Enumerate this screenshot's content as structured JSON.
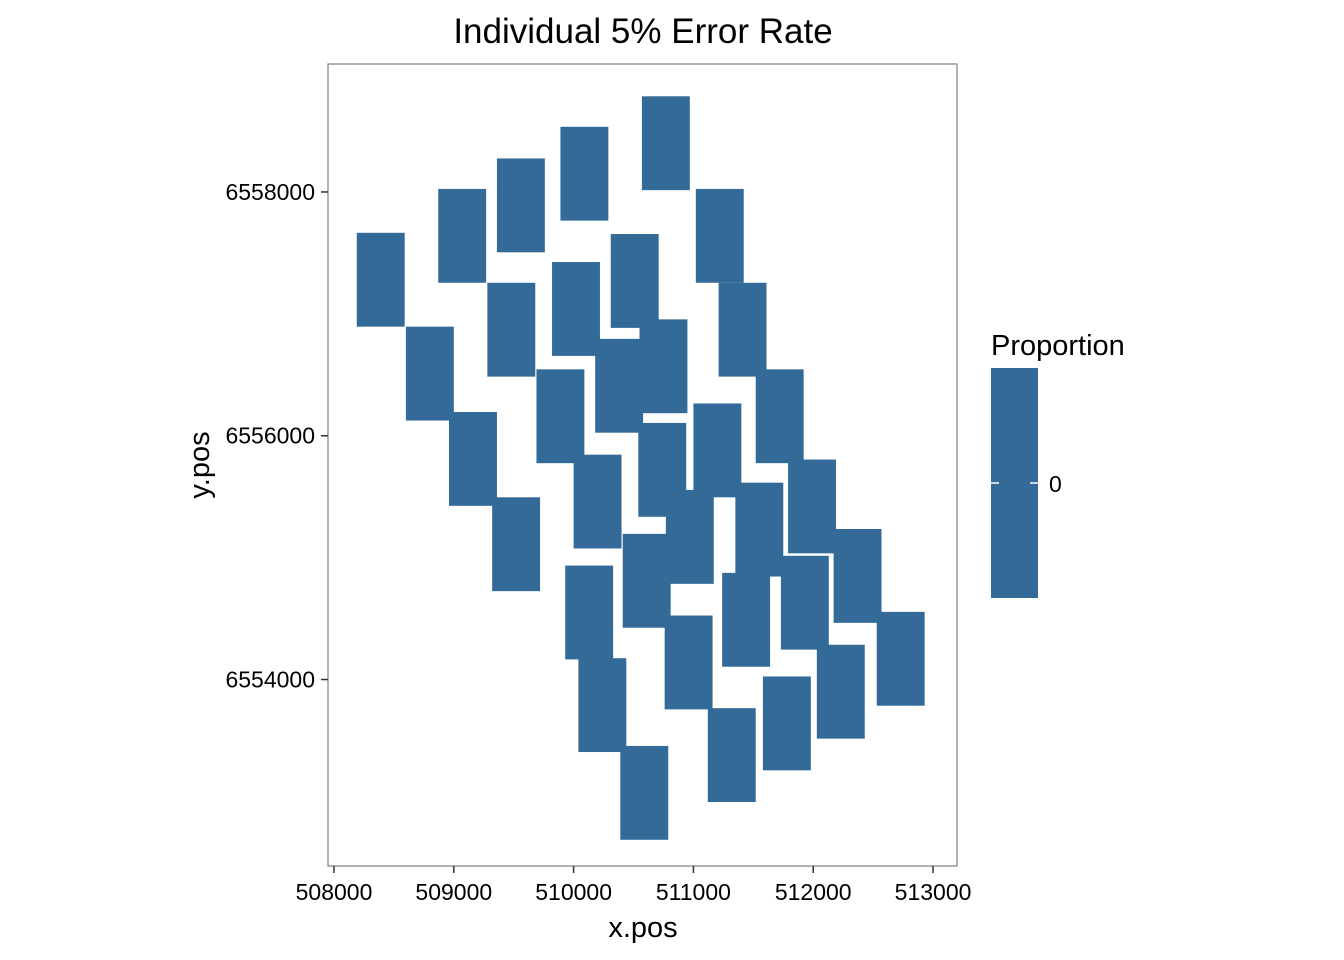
{
  "chart_data": {
    "type": "heatmap",
    "title": "Individual 5% Error Rate",
    "xlabel": "x.pos",
    "ylabel": "y.pos",
    "xlim": [
      507950,
      513200
    ],
    "ylim": [
      6552470,
      6559050
    ],
    "xticks": [
      {
        "value": 508000,
        "label": "508000"
      },
      {
        "value": 509000,
        "label": "509000"
      },
      {
        "value": 510000,
        "label": "510000"
      },
      {
        "value": 511000,
        "label": "511000"
      },
      {
        "value": 512000,
        "label": "512000"
      },
      {
        "value": 513000,
        "label": "513000"
      }
    ],
    "yticks": [
      {
        "value": 6554000,
        "label": "6554000"
      },
      {
        "value": 6556000,
        "label": "6556000"
      },
      {
        "value": 6558000,
        "label": "6558000"
      }
    ],
    "cell_width": 400,
    "cell_height": 770,
    "fill_color": "#336a98",
    "legend": {
      "title": "Proportion",
      "position": "right",
      "labels": [
        {
          "value": 0,
          "label": "0"
        }
      ]
    },
    "cells": [
      {
        "x": 508390,
        "y": 6557280,
        "value": 0
      },
      {
        "x": 508800,
        "y": 6556510,
        "value": 0
      },
      {
        "x": 509070,
        "y": 6557640,
        "value": 0
      },
      {
        "x": 509160,
        "y": 6555810,
        "value": 0
      },
      {
        "x": 509520,
        "y": 6555110,
        "value": 0
      },
      {
        "x": 509480,
        "y": 6556870,
        "value": 0
      },
      {
        "x": 509560,
        "y": 6557890,
        "value": 0
      },
      {
        "x": 509890,
        "y": 6556160,
        "value": 0
      },
      {
        "x": 510020,
        "y": 6557040,
        "value": 0
      },
      {
        "x": 510090,
        "y": 6558150,
        "value": 0
      },
      {
        "x": 510200,
        "y": 6555460,
        "value": 0
      },
      {
        "x": 510130,
        "y": 6554550,
        "value": 0
      },
      {
        "x": 510240,
        "y": 6553790,
        "value": 0
      },
      {
        "x": 510380,
        "y": 6556410,
        "value": 0
      },
      {
        "x": 510510,
        "y": 6557270,
        "value": 0
      },
      {
        "x": 510610,
        "y": 6554810,
        "value": 0
      },
      {
        "x": 510590,
        "y": 6553070,
        "value": 0
      },
      {
        "x": 510740,
        "y": 6555720,
        "value": 0
      },
      {
        "x": 510750,
        "y": 6556570,
        "value": 0
      },
      {
        "x": 510770,
        "y": 6558400,
        "value": 0
      },
      {
        "x": 510960,
        "y": 6554140,
        "value": 0
      },
      {
        "x": 510970,
        "y": 6555170,
        "value": 0
      },
      {
        "x": 511200,
        "y": 6555880,
        "value": 0
      },
      {
        "x": 511220,
        "y": 6557640,
        "value": 0
      },
      {
        "x": 511320,
        "y": 6553380,
        "value": 0
      },
      {
        "x": 511440,
        "y": 6554490,
        "value": 0
      },
      {
        "x": 511410,
        "y": 6556870,
        "value": 0
      },
      {
        "x": 511550,
        "y": 6555230,
        "value": 0
      },
      {
        "x": 511720,
        "y": 6556160,
        "value": 0
      },
      {
        "x": 511780,
        "y": 6553640,
        "value": 0
      },
      {
        "x": 511930,
        "y": 6554630,
        "value": 0
      },
      {
        "x": 511990,
        "y": 6555420,
        "value": 0
      },
      {
        "x": 512230,
        "y": 6553900,
        "value": 0
      },
      {
        "x": 512370,
        "y": 6554850,
        "value": 0
      },
      {
        "x": 512730,
        "y": 6554170,
        "value": 0
      }
    ]
  }
}
